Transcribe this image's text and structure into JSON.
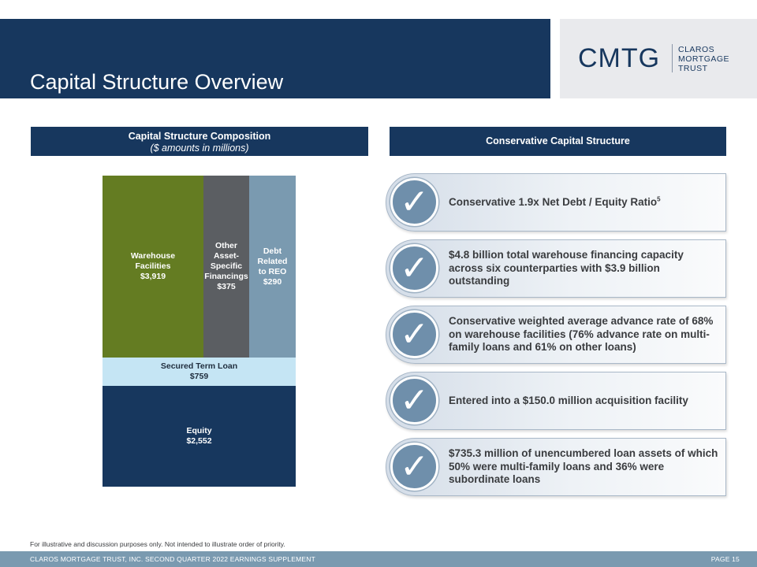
{
  "header": {
    "title": "Capital Structure Overview"
  },
  "logo": {
    "mark": "CMTG",
    "line1": "CLAROS",
    "line2": "MORTGAGE",
    "line3": "TRUST"
  },
  "left_section": {
    "title": "Capital Structure Composition",
    "subtitle": "($ amounts in millions)"
  },
  "right_section": {
    "title": "Conservative Capital Structure"
  },
  "chart_data": {
    "type": "bar",
    "title": "Capital Structure Composition",
    "subtitle": "($ amounts in millions)",
    "segments": [
      {
        "name": "Warehouse Facilities",
        "lines": [
          "Warehouse",
          "Facilities"
        ],
        "label": "$3,919",
        "value": 3919
      },
      {
        "name": "Other Asset-Specific Financings",
        "lines": [
          "Other",
          "Asset-",
          "Specific",
          "Financings"
        ],
        "label": "$375",
        "value": 375
      },
      {
        "name": "Debt Related to REO",
        "lines": [
          "Debt",
          "Related",
          "to REO"
        ],
        "label": "$290",
        "value": 290
      },
      {
        "name": "Secured Term Loan",
        "lines": [
          "Secured Term Loan"
        ],
        "label": "$759",
        "value": 759
      },
      {
        "name": "Equity",
        "lines": [
          "Equity"
        ],
        "label": "$2,552",
        "value": 2552
      }
    ]
  },
  "bullets": [
    {
      "text": "Conservative 1.9x Net Debt / Equity Ratio",
      "sup": "5"
    },
    {
      "text": "$4.8 billion total warehouse financing capacity across six counterparties with $3.9 billion outstanding",
      "sup": ""
    },
    {
      "text": "Conservative weighted average advance rate of 68% on warehouse facilities (76% advance rate on multi-family loans and 61% on other loans)",
      "sup": ""
    },
    {
      "text": "Entered into a $150.0 million acquisition facility",
      "sup": ""
    },
    {
      "text": "$735.3 million of unencumbered loan assets of which 50% were multi-family loans and 36% were subordinate loans",
      "sup": ""
    }
  ],
  "check_glyph": "✓",
  "footnote": "For illustrative and discussion purposes only. Not intended to illustrate order of priority.",
  "footer": {
    "left": "CLAROS MORTGAGE TRUST, INC. SECOND QUARTER 2022 EARNINGS SUPPLEMENT",
    "right": "PAGE 15"
  },
  "colors": {
    "navy": "#17375e",
    "olive": "#647c22",
    "gray": "#5b5e62",
    "steel": "#7a9ab0",
    "light_blue": "#c5e5f4"
  }
}
